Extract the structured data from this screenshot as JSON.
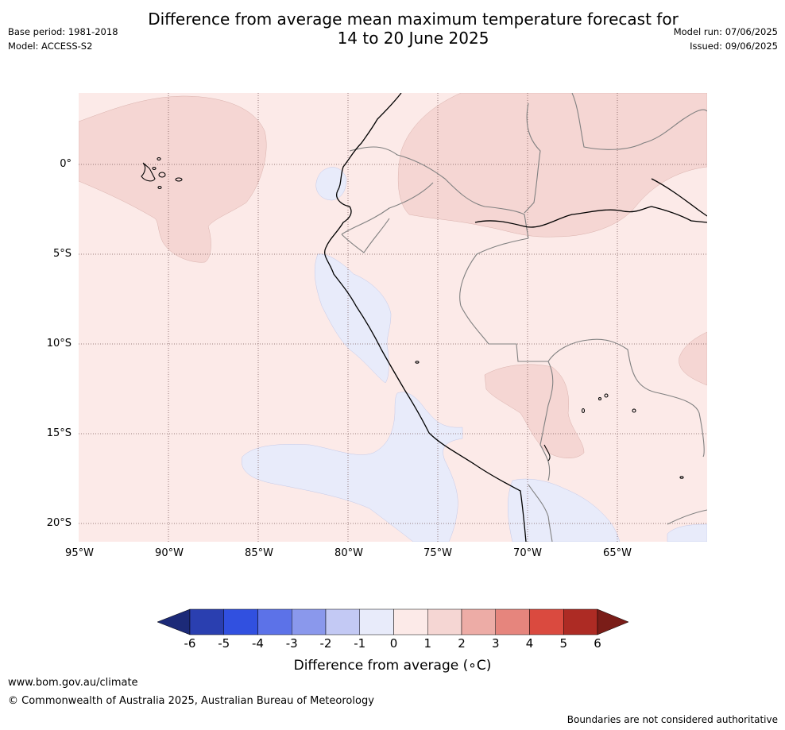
{
  "header": {
    "title_line1": "Difference from average mean maximum temperature forecast for",
    "title_line2": "14 to 20 June 2025",
    "base_period": "Base period: 1981-2018",
    "model": "Model: ACCESS-S2",
    "model_run": "Model run: 07/06/2025",
    "issued": "Issued: 09/06/2025"
  },
  "map": {
    "latitude_labels": [
      "0°",
      "5°S",
      "10°S",
      "15°S",
      "20°S"
    ],
    "longitude_labels": [
      "95°W",
      "90°W",
      "85°W",
      "80°W",
      "75°W",
      "70°W",
      "65°W"
    ],
    "background_category": "0 to 1",
    "gridlines": true,
    "colors": {
      "land_outline": "#000000",
      "borders": "#808080",
      "grid": "#7a5a5a"
    }
  },
  "colorbar": {
    "title": "Difference from average (∘C)",
    "tick_labels": [
      "-6",
      "-5",
      "-4",
      "-3",
      "-2",
      "-1",
      "0",
      "1",
      "2",
      "3",
      "4",
      "5",
      "6"
    ],
    "colors": [
      "#1c2a78",
      "#2a3fb0",
      "#3150e0",
      "#5c72e8",
      "#8a98ec",
      "#c3c9f4",
      "#e8ebfa",
      "#fceae8",
      "#f5d6d3",
      "#edaca6",
      "#e6857d",
      "#da4a3f",
      "#ad2b24",
      "#7a1d18"
    ]
  },
  "footer": {
    "url": "www.bom.gov.au/climate",
    "copyright": "© Commonwealth of Australia 2025, Australian Bureau of Meteorology",
    "disclaimer": "Boundaries are not considered authoritative"
  }
}
